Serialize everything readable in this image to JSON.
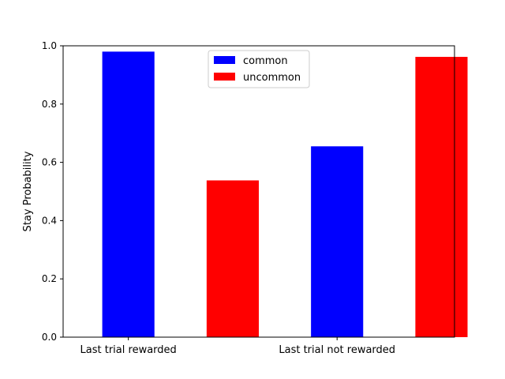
{
  "chart_data": {
    "type": "bar",
    "title": "",
    "xlabel": "",
    "ylabel": "Stay Probability",
    "categories": [
      "Last trial rewarded",
      "Last trial not rewarded"
    ],
    "series": [
      {
        "name": "common",
        "color": "#0000ff",
        "values": [
          0.98,
          0.655
        ]
      },
      {
        "name": "uncommon",
        "color": "#ff0000",
        "values": [
          0.538,
          0.962
        ]
      }
    ],
    "ylim": [
      0,
      1.0
    ],
    "yticks": [
      "0.0",
      "0.2",
      "0.4",
      "0.6",
      "0.8",
      "1.0"
    ],
    "grid": false,
    "legend_position": "top-center"
  }
}
